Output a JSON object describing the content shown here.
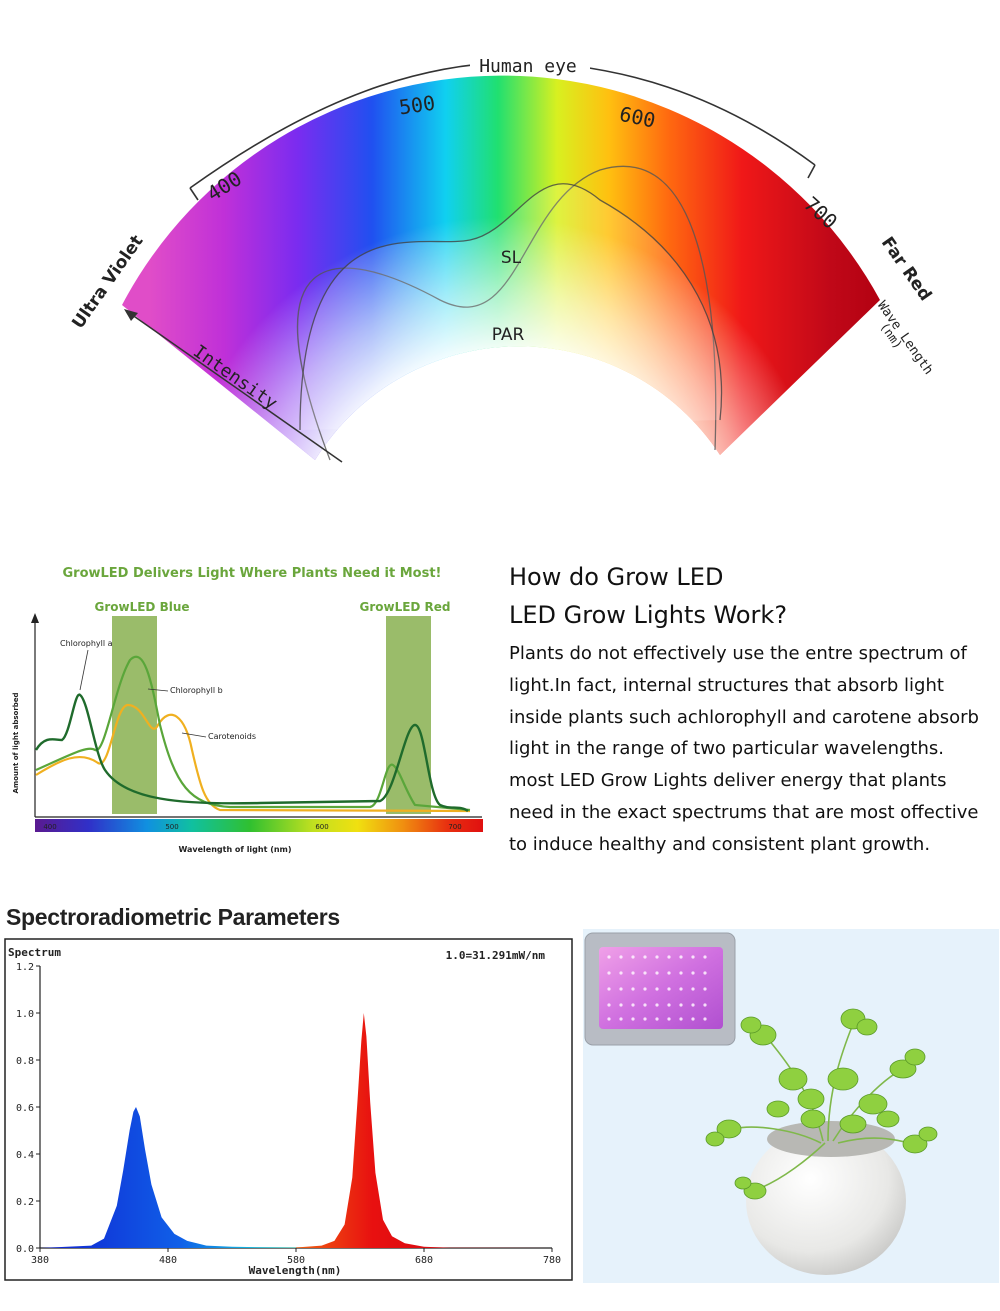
{
  "spectrum_arc": {
    "human_eye_label": "Human eye",
    "ticks": [
      "400",
      "500",
      "600",
      "700"
    ],
    "ultra_violet_label": "Ultra Violet",
    "far_red_label": "Far Red",
    "wavelength_label_line1": "Wave Length",
    "wavelength_label_line2": "(nm)",
    "intensity_label": "Intensity",
    "sl_label": "SL",
    "par_label": "PAR"
  },
  "absorption_chart": {
    "banner": "GrowLED Delivers Light Where Plants Need it Most!",
    "blue_band_label": "GrowLED Blue",
    "red_band_label": "GrowLED Red",
    "curve_labels": [
      "Chlorophyll a",
      "Chlorophyll b",
      "Carotenoids"
    ],
    "ylabel": "Amount of light absorbed",
    "xlabel": "Wavelength of light (nm)",
    "xticks": [
      "400",
      "500",
      "600",
      "700"
    ],
    "colors": {
      "band": "#8fb55a",
      "chl_a": "#1f6b2c",
      "chl_b": "#5aa63a",
      "carotenoids": "#f0b020",
      "banner_text": "#6aa63c"
    }
  },
  "explanation": {
    "heading_line1": "How do Grow LED",
    "heading_line2": "LED Grow  Lights Work?",
    "body_lines": [
      "Plants do not effectively use the entre spectrum of",
      "light.In fact, internal structures that absorb light",
      "inside plants such achlorophyll and carotene absorb",
      "light in the range of  two particular wavelengths.",
      "most LED Grow Lights deliver energy that plants",
      "need in the exact spectrums that are most offective",
      "to induce healthy and consistent plant growth."
    ]
  },
  "chart_data": {
    "type": "line",
    "title": "Spectroradiometric Parameters",
    "ylabel": "Spectrum",
    "xlabel": "Wavelength(nm)",
    "annotation": "1.0=31.291mW/nm",
    "xlim": [
      380,
      780
    ],
    "ylim": [
      0,
      1.2
    ],
    "xticks": [
      380,
      480,
      580,
      680,
      780
    ],
    "yticks": [
      "0.0",
      "0.2",
      "0.4",
      "0.6",
      "0.8",
      "1.0",
      "1.2"
    ],
    "grid": false,
    "series": [
      {
        "color": "#1030e0",
        "x": [
          380,
          420,
          430,
          440,
          445,
          450,
          453,
          455,
          458,
          462,
          467,
          475,
          485,
          495,
          510,
          530,
          560,
          580
        ],
        "y": [
          0.0,
          0.01,
          0.04,
          0.18,
          0.33,
          0.5,
          0.58,
          0.6,
          0.56,
          0.42,
          0.27,
          0.13,
          0.06,
          0.03,
          0.01,
          0.005,
          0.003,
          0.002
        ]
      },
      {
        "color": "#e01010",
        "x": [
          580,
          600,
          610,
          618,
          624,
          628,
          631,
          633,
          635,
          638,
          642,
          648,
          655,
          665,
          680,
          700,
          780
        ],
        "y": [
          0.002,
          0.01,
          0.03,
          0.1,
          0.3,
          0.62,
          0.88,
          1.0,
          0.9,
          0.62,
          0.32,
          0.12,
          0.05,
          0.02,
          0.005,
          0.001,
          0.0
        ]
      }
    ]
  }
}
